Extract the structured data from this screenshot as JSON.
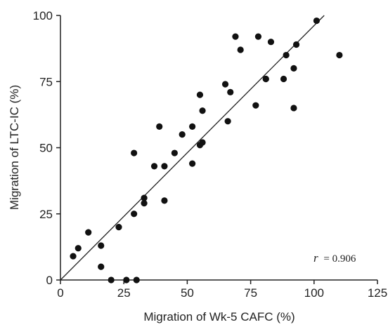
{
  "chart_data": {
    "type": "scatter",
    "xlabel": "Migration of Wk-5 CAFC (%)",
    "ylabel": "Migration of LTC-IC (%)",
    "xlim": [
      0,
      125
    ],
    "ylim": [
      0,
      100
    ],
    "xticks": [
      "0",
      "25",
      "50",
      "75",
      "100",
      "125"
    ],
    "yticks": [
      "0",
      "25",
      "50",
      "75",
      "100"
    ],
    "grid": false,
    "annotation": {
      "r_symbol": "r",
      "r_value": "= 0.906"
    },
    "regression_line": {
      "from": [
        0,
        0
      ],
      "to": [
        104,
        100
      ]
    },
    "points": [
      {
        "x": 5,
        "y": 9
      },
      {
        "x": 7,
        "y": 12
      },
      {
        "x": 11,
        "y": 18
      },
      {
        "x": 16,
        "y": 5
      },
      {
        "x": 16,
        "y": 13
      },
      {
        "x": 20,
        "y": 0
      },
      {
        "x": 23,
        "y": 20
      },
      {
        "x": 26,
        "y": 0
      },
      {
        "x": 30,
        "y": 0
      },
      {
        "x": 29,
        "y": 25
      },
      {
        "x": 29,
        "y": 48
      },
      {
        "x": 33,
        "y": 31
      },
      {
        "x": 33,
        "y": 29
      },
      {
        "x": 37,
        "y": 43
      },
      {
        "x": 39,
        "y": 58
      },
      {
        "x": 41,
        "y": 30
      },
      {
        "x": 41,
        "y": 43
      },
      {
        "x": 45,
        "y": 48
      },
      {
        "x": 48,
        "y": 55
      },
      {
        "x": 52,
        "y": 58
      },
      {
        "x": 52,
        "y": 44
      },
      {
        "x": 55,
        "y": 51
      },
      {
        "x": 56,
        "y": 52
      },
      {
        "x": 55,
        "y": 70
      },
      {
        "x": 56,
        "y": 64
      },
      {
        "x": 65,
        "y": 74
      },
      {
        "x": 66,
        "y": 60
      },
      {
        "x": 67,
        "y": 71
      },
      {
        "x": 69,
        "y": 92
      },
      {
        "x": 71,
        "y": 87
      },
      {
        "x": 77,
        "y": 66
      },
      {
        "x": 78,
        "y": 92
      },
      {
        "x": 81,
        "y": 76
      },
      {
        "x": 81,
        "y": 76
      },
      {
        "x": 83,
        "y": 90
      },
      {
        "x": 88,
        "y": 76
      },
      {
        "x": 89,
        "y": 85
      },
      {
        "x": 92,
        "y": 80
      },
      {
        "x": 92,
        "y": 65
      },
      {
        "x": 93,
        "y": 89
      },
      {
        "x": 101,
        "y": 98
      },
      {
        "x": 110,
        "y": 85
      }
    ]
  }
}
